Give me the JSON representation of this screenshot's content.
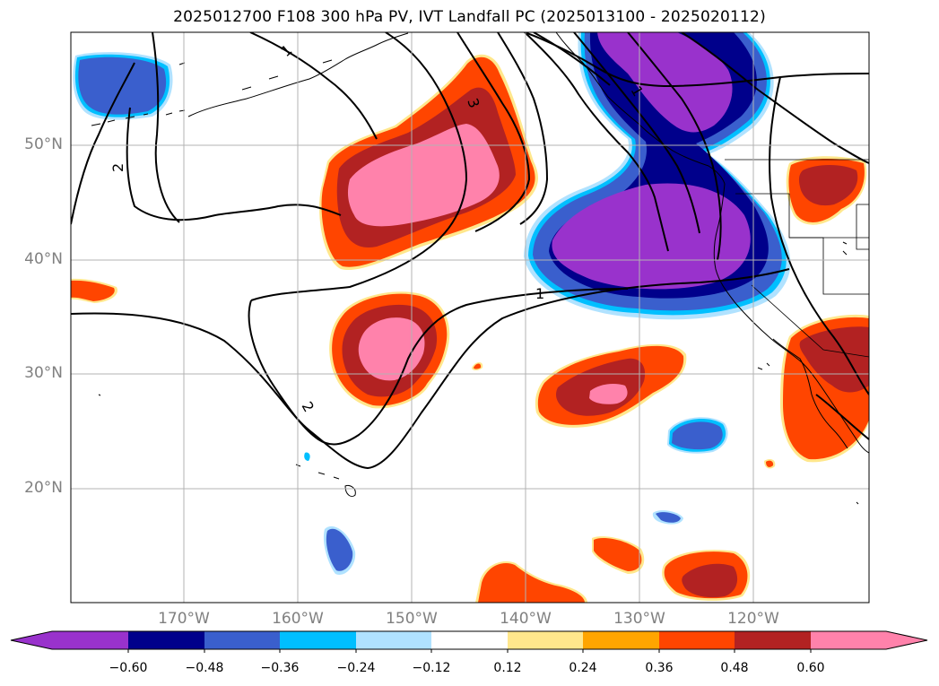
{
  "title": "2025012700 F108 300 hPa PV, IVT Landfall PC (2025013100 - 2025020112)",
  "latitude_labels": [
    "50°N",
    "40°N",
    "30°N",
    "20°N"
  ],
  "longitude_labels": [
    "170°W",
    "160°W",
    "150°W",
    "140°W",
    "130°W",
    "120°W"
  ],
  "contour_labels": [
    "1",
    "2",
    "3",
    "1",
    "1",
    "2",
    "2"
  ],
  "colorbar": {
    "ticks": [
      "−0.60",
      "−0.48",
      "−0.36",
      "−0.24",
      "−0.12",
      "0.12",
      "0.24",
      "0.36",
      "0.48",
      "0.60"
    ],
    "colors": [
      "#9932cc",
      "#00008b",
      "#3a5fcd",
      "#00bfff",
      "#b0e2ff",
      "#ffffff",
      "#ffe78c",
      "#ffa500",
      "#ff4500",
      "#b22222",
      "#ff82ab"
    ]
  },
  "colors": {
    "purple": "#9932cc",
    "navy": "#00008b",
    "royal_blue": "#3a5fcd",
    "deep_sky_blue": "#00bfff",
    "light_blue": "#b0e2ff",
    "light_yellow": "#ffe78c",
    "orange": "#ffa500",
    "orange_red": "#ff4500",
    "firebrick": "#b22222",
    "pink": "#ff82ab",
    "grid": "#b3b3b3",
    "label_gray": "#808080"
  }
}
